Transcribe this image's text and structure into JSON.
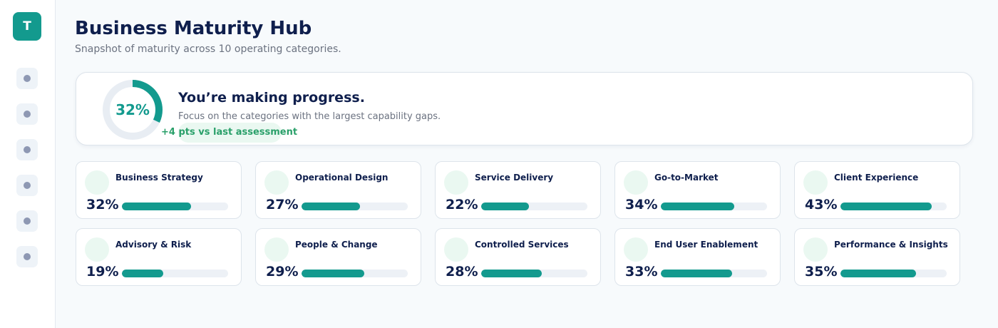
{
  "sidebar": {
    "logo_letter": "T",
    "items": [
      {
        "icon": "dot-icon"
      },
      {
        "icon": "dot-icon"
      },
      {
        "icon": "dot-icon"
      },
      {
        "icon": "dot-icon"
      },
      {
        "icon": "dot-icon"
      },
      {
        "icon": "dot-icon"
      }
    ]
  },
  "header": {
    "title": "Business Maturity Hub",
    "subtitle": "Snapshot of maturity across 10 operating categories."
  },
  "summary": {
    "score_value": 32,
    "score_label": "32%",
    "title": "You’re making progress.",
    "text": "Focus on the categories with the largest capability gaps.",
    "delta": "+4 pts vs last assessment"
  },
  "categories": [
    {
      "name": "Business Strategy",
      "value": 32,
      "label": "32%",
      "fill_fraction": 0.65
    },
    {
      "name": "Operational Design",
      "value": 27,
      "label": "27%",
      "fill_fraction": 0.55
    },
    {
      "name": "Service Delivery",
      "value": 22,
      "label": "22%",
      "fill_fraction": 0.45
    },
    {
      "name": "Go-to-Market",
      "value": 34,
      "label": "34%",
      "fill_fraction": 0.69
    },
    {
      "name": "Client Experience",
      "value": 43,
      "label": "43%",
      "fill_fraction": 0.86
    },
    {
      "name": "Advisory & Risk",
      "value": 19,
      "label": "19%",
      "fill_fraction": 0.39
    },
    {
      "name": "People & Change",
      "value": 29,
      "label": "29%",
      "fill_fraction": 0.59
    },
    {
      "name": "Controlled Services",
      "value": 28,
      "label": "28%",
      "fill_fraction": 0.57
    },
    {
      "name": "End User Enablement",
      "value": 33,
      "label": "33%",
      "fill_fraction": 0.67
    },
    {
      "name": "Performance & Insights",
      "value": 35,
      "label": "35%",
      "fill_fraction": 0.71
    }
  ],
  "colors": {
    "accent": "#139a8e",
    "positive": "#2aa06a",
    "text_dark": "#0f1f4d",
    "text_muted": "#6b7280",
    "track": "#edf1f6",
    "soft_green": "#eaf8f1"
  }
}
